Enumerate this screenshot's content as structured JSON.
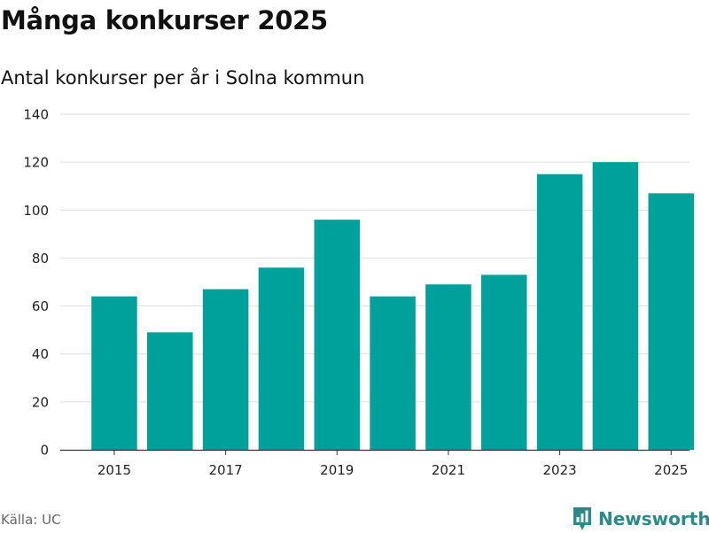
{
  "header": {
    "title": "Många konkurser 2025",
    "subtitle": "Antal konkurser per år i Solna kommun"
  },
  "footer": {
    "source": "Källa: UC",
    "brand": "Newsworthy"
  },
  "colors": {
    "bar": "#00a19a",
    "grid": "#dddddd",
    "axis": "#333333",
    "brand": "#2a8a87"
  },
  "chart_data": {
    "type": "bar",
    "categories": [
      "2015",
      "2016",
      "2017",
      "2018",
      "2019",
      "2020",
      "2021",
      "2022",
      "2023",
      "2024",
      "2025"
    ],
    "values": [
      64,
      49,
      67,
      76,
      96,
      64,
      69,
      73,
      115,
      120,
      107
    ],
    "x_tick_labels": [
      "2015",
      "2017",
      "2019",
      "2021",
      "2023",
      "2025"
    ],
    "y_ticks": [
      0,
      20,
      40,
      60,
      80,
      100,
      120,
      140
    ],
    "ylim": [
      0,
      140
    ],
    "title": "Många konkurser 2025",
    "subtitle": "Antal konkurser per år i Solna kommun",
    "xlabel": "",
    "ylabel": "",
    "grid": true,
    "legend": "none"
  }
}
